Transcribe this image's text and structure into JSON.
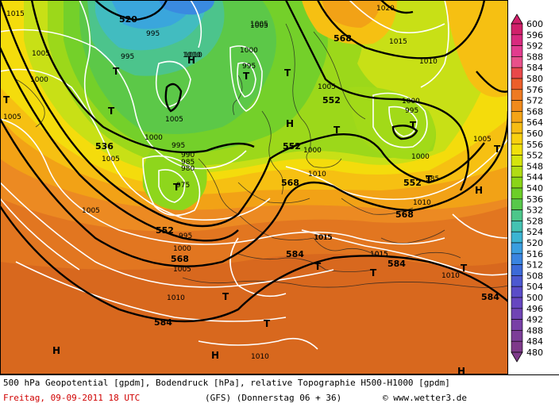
{
  "footer": {
    "title": "500 hPa Geopotential [gpdm], Bodendruck [hPa], relative Topographie H500-H1000 [gpdm]",
    "date": "Freitag, 09-09-2011  18 UTC",
    "model": "(GFS)  (Donnerstag 06 + 36)",
    "copyright": "© www.wetter3.de"
  },
  "legend": {
    "unit": "gpdm",
    "ticks": [
      "600",
      "596",
      "592",
      "588",
      "584",
      "580",
      "576",
      "572",
      "568",
      "564",
      "560",
      "556",
      "552",
      "548",
      "544",
      "540",
      "536",
      "532",
      "528",
      "524",
      "520",
      "516",
      "512",
      "508",
      "504",
      "500",
      "496",
      "492",
      "488",
      "484",
      "480"
    ],
    "colors": [
      "#d0206a",
      "#d82a7e",
      "#e23c8e",
      "#e8508a",
      "#e8484a",
      "#ec5e2a",
      "#ee7a22",
      "#f08a1c",
      "#f4a418",
      "#f6bc14",
      "#f8d010",
      "#f0e00c",
      "#d4e40e",
      "#b0dc14",
      "#8ad418",
      "#6cce28",
      "#58c84a",
      "#4cc68a",
      "#44c2b2",
      "#3cb4d2",
      "#3a9ee0",
      "#3a84e0",
      "#3c6ad8",
      "#4c58d0",
      "#5a4cc8",
      "#6646c0",
      "#7044b4",
      "#7840a6",
      "#7c3e98",
      "#7e3a8a"
    ]
  },
  "map": {
    "geopotential_labels": [
      {
        "t": "520",
        "k": "gp"
      },
      {
        "t": "536",
        "k": "gp"
      },
      {
        "t": "552",
        "k": "gp"
      },
      {
        "t": "552",
        "k": "gp"
      },
      {
        "t": "552",
        "k": "gp"
      },
      {
        "t": "552",
        "k": "gp"
      },
      {
        "t": "568",
        "k": "gp"
      },
      {
        "t": "568",
        "k": "gp"
      },
      {
        "t": "568",
        "k": "gp"
      },
      {
        "t": "568",
        "k": "gp"
      },
      {
        "t": "584",
        "k": "gp"
      },
      {
        "t": "584",
        "k": "gp"
      },
      {
        "t": "584",
        "k": "gp"
      },
      {
        "t": "584",
        "k": "gp"
      }
    ],
    "pressure_labels": [
      "1015",
      "1005",
      "1000",
      "995",
      "1005",
      "995",
      "1010",
      "1005",
      "1000",
      "995",
      "1005",
      "1000",
      "995",
      "1005",
      "990",
      "985",
      "980",
      "975",
      "1005",
      "995",
      "1000",
      "1005",
      "1010",
      "1015",
      "1015",
      "1010",
      "1010",
      "1010",
      "1005",
      "1000",
      "995",
      "1000",
      "1010",
      "1015",
      "1020",
      "1005",
      "985",
      "1000",
      "1010",
      "1005",
      "1010",
      "1015",
      "1015"
    ],
    "pressure_systems": [
      "T",
      "T",
      "T",
      "T",
      "T",
      "T",
      "T",
      "T",
      "T",
      "T",
      "T",
      "T",
      "T",
      "T",
      "T",
      "H",
      "H",
      "H",
      "H",
      "H",
      "H"
    ]
  }
}
